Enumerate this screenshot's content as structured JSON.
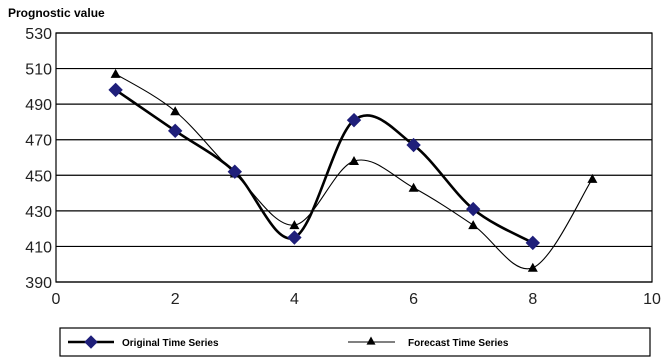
{
  "chart_data": {
    "type": "line",
    "title": "",
    "xlabel": "",
    "ylabel": "Prognostic value",
    "xlim": [
      0,
      10
    ],
    "ylim": [
      390,
      530
    ],
    "xticks": [
      0,
      2,
      4,
      6,
      8,
      10
    ],
    "yticks": [
      390,
      410,
      430,
      450,
      470,
      490,
      510,
      530
    ],
    "grid": "horizontal",
    "legend_position": "bottom",
    "series": [
      {
        "name": "Original Time Series",
        "marker": "diamond",
        "color": "#1f1f7a",
        "line_color": "#000000",
        "x": [
          1,
          2,
          3,
          4,
          5,
          6,
          7,
          8
        ],
        "values": [
          498,
          475,
          452,
          415,
          481,
          467,
          431,
          412
        ]
      },
      {
        "name": "Forecast Time Series",
        "marker": "triangle",
        "color": "#000000",
        "line_color": "#000000",
        "x": [
          1,
          2,
          3,
          4,
          5,
          6,
          7,
          8,
          9
        ],
        "values": [
          507,
          486,
          451,
          422,
          458,
          443,
          422,
          398,
          448
        ]
      }
    ]
  }
}
